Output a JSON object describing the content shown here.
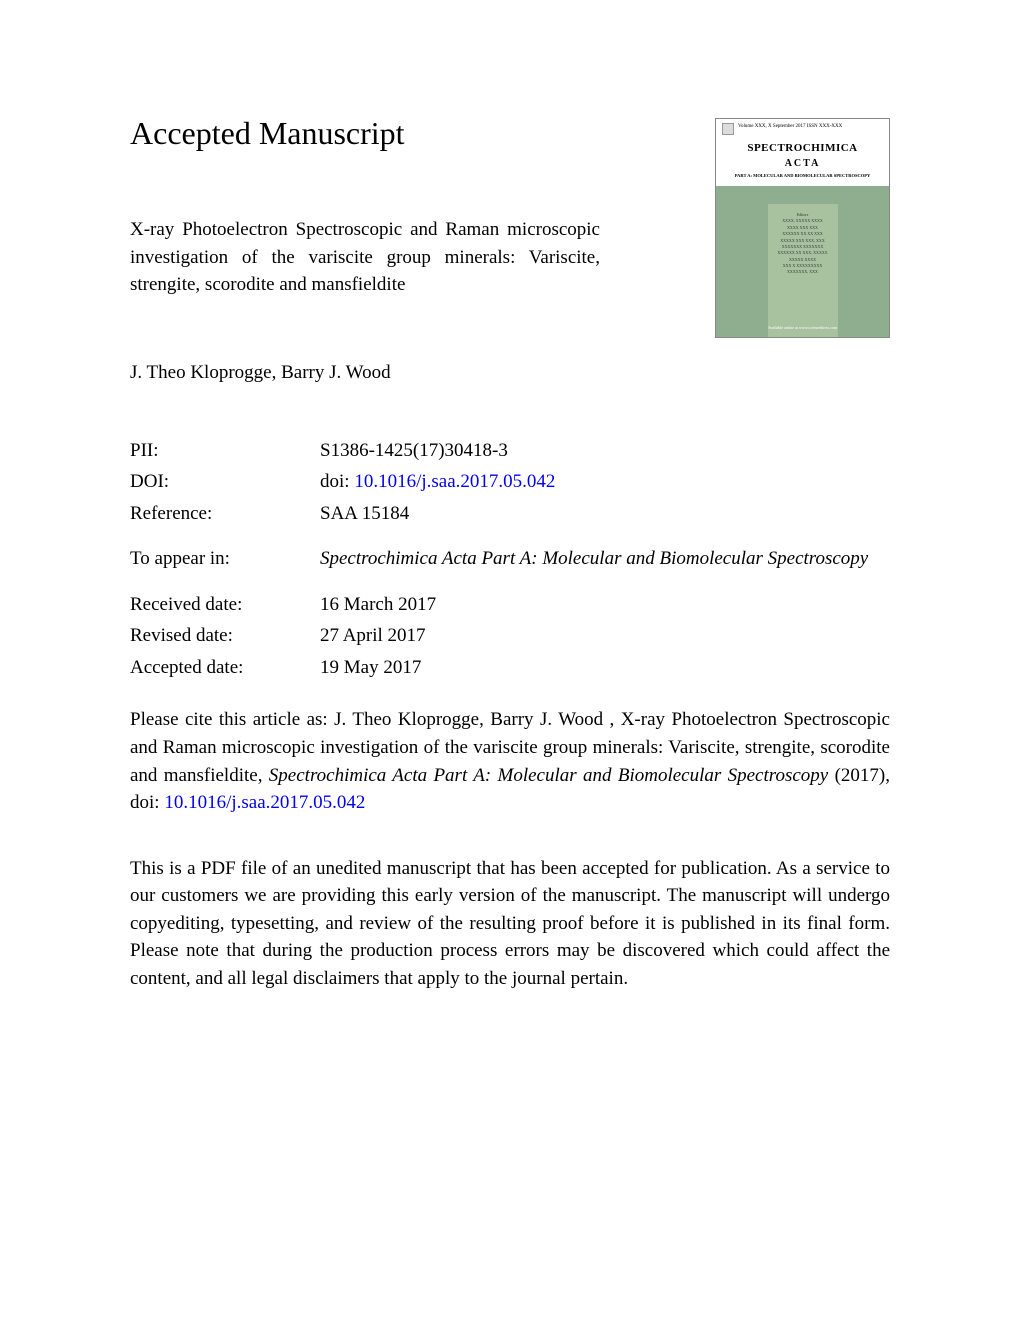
{
  "heading": "Accepted Manuscript",
  "title": "X-ray Photoelectron Spectroscopic and Raman microscopic investigation of the variscite group minerals: Variscite, strengite, scorodite and mansfieldite",
  "authors": "J. Theo Kloprogge, Barry J. Wood",
  "journal_cover": {
    "top_text": "Volume XXX, X September 2017     ISSN XXX-XXX",
    "name": "SPECTROCHIMICA",
    "subname": "ACTA",
    "part_line": "PART A: MOLECULAR AND BIOMOLECULAR SPECTROSCOPY",
    "editors_heading": "Editors",
    "editor_lines": [
      "XXXX, XXXXX XXXX",
      "XXXX XXX XXX",
      "",
      "XXXXXX XX XX XXX",
      "XXXXX XXX XXX, XXX",
      "",
      "XXXXXXX XXXXXXX",
      "XXXXXX XX XXX, XXXXX",
      "XXXXX XXXX",
      "",
      "XXX X XXXXXXXXX",
      "XXXXXXX, XXX"
    ],
    "footer": "Available online at www.sciencedirect.com"
  },
  "meta": {
    "pii_label": "PII:",
    "pii_value": "S1386-1425(17)30418-3",
    "doi_label": "DOI:",
    "doi_prefix": "doi: ",
    "doi_link": "10.1016/j.saa.2017.05.042",
    "reference_label": "Reference:",
    "reference_value": "SAA 15184",
    "toappear_label": "To appear in:",
    "toappear_value": "Spectrochimica Acta Part A: Molecular and Biomolecular Spectroscopy",
    "received_label": "Received date:",
    "received_value": "16 March 2017",
    "revised_label": "Revised date:",
    "revised_value": "27 April 2017",
    "accepted_label": "Accepted date:",
    "accepted_value": "19 May 2017"
  },
  "citation": {
    "prefix": "Please cite this article as: J. Theo Kloprogge, Barry J. Wood , X-ray Photoelectron Spectroscopic and Raman microscopic investigation of the variscite group minerals: Variscite, strengite, scorodite and mansfieldite, ",
    "journal_italic": "Spectrochimica Acta Part A: Molecular and Biomolecular Spectroscopy",
    "middle": " (2017), doi: ",
    "link": "10.1016/j.saa.2017.05.042"
  },
  "disclaimer": "This is a PDF file of an unedited manuscript that has been accepted for publication. As a service to our customers we are providing this early version of the manuscript. The manuscript will undergo copyediting, typesetting, and review of the resulting proof before it is published in its final form. Please note that during the production process errors may be discovered which could affect the content, and all legal disclaimers that apply to the journal pertain.",
  "colors": {
    "link": "#0000ee",
    "cover_body": "#8fae8f",
    "cover_panel": "#a8c2a0"
  }
}
